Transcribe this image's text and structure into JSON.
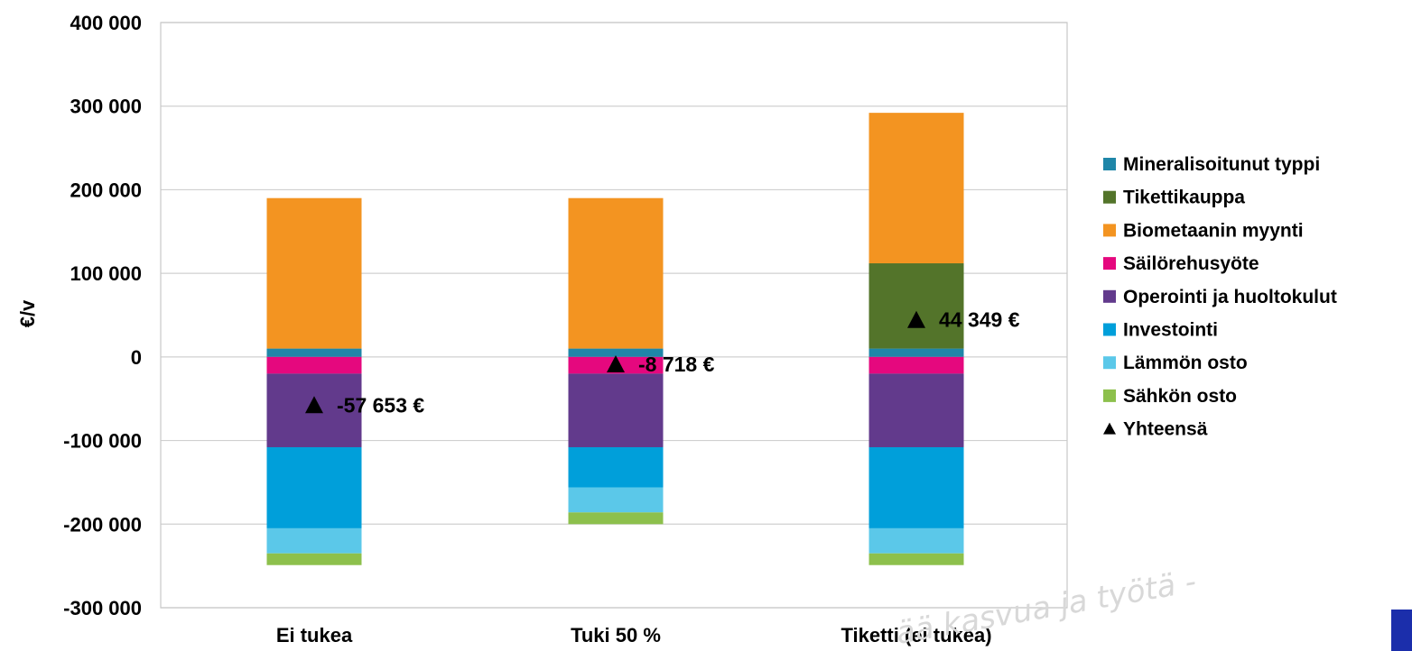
{
  "chart_data": {
    "type": "bar",
    "stacked": true,
    "ylabel": "€/v",
    "ylim": [
      -300000,
      400000
    ],
    "yticks": [
      400000,
      300000,
      200000,
      100000,
      0,
      -100000,
      -200000,
      -300000
    ],
    "ytick_labels": [
      "400 000",
      "300 000",
      "200 000",
      "100 000",
      "0",
      "-100 000",
      "-200 000",
      "-300 000"
    ],
    "categories": [
      "Ei tukea",
      "Tuki 50 %",
      "Tiketti (ei tukea)"
    ],
    "grid": true,
    "legend_position": "right",
    "series": [
      {
        "name": "Mineralisoitunut typpi",
        "color": "#1F86A8",
        "values": [
          10000,
          10000,
          10000
        ]
      },
      {
        "name": "Tikettikauppa",
        "color": "#53742A",
        "values": [
          0,
          0,
          102000
        ]
      },
      {
        "name": "Biometaanin myynti",
        "color": "#F39421",
        "values": [
          180000,
          180000,
          180000
        ]
      },
      {
        "name": "Säilörehusyöte",
        "color": "#E5087E",
        "values": [
          -20000,
          -20000,
          -20000
        ]
      },
      {
        "name": "Operointi ja huoltokulut",
        "color": "#623A8C",
        "values": [
          -88000,
          -88000,
          -88000
        ]
      },
      {
        "name": "Investointi",
        "color": "#009FDA",
        "values": [
          -97000,
          -48000,
          -97000
        ]
      },
      {
        "name": "Lämmön osto",
        "color": "#5BC8E9",
        "values": [
          -30000,
          -30000,
          -30000
        ]
      },
      {
        "name": "Sähkön osto",
        "color": "#8DC04C",
        "values": [
          -14000,
          -14000,
          -14000
        ]
      }
    ],
    "total_series": {
      "name": "Yhteensä",
      "marker": "triangle",
      "values": [
        -57653,
        -8718,
        44349
      ],
      "labels": [
        "-57 653 €",
        "-8 718 €",
        "44 349 €"
      ]
    }
  },
  "watermark_text": "ää kasvua ja työtä -"
}
